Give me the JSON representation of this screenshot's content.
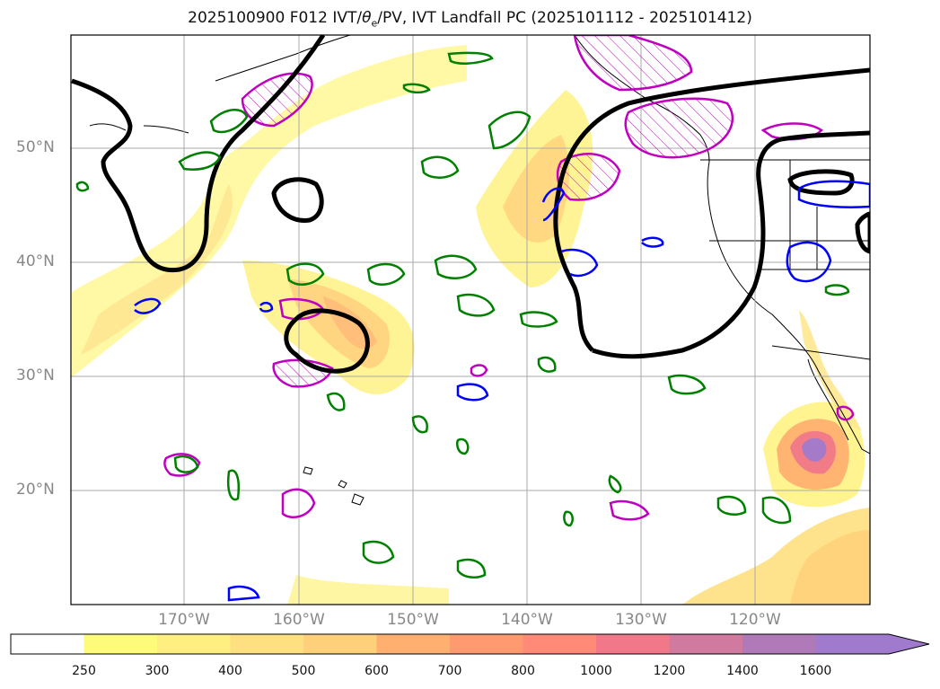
{
  "title_prefix": "2025100900 F012 IVT/",
  "title_symbol": "θ",
  "title_sub": "e",
  "title_suffix": "/PV, IVT Landfall PC (2025101112 - 2025101412)",
  "lat_labels": [
    "50°N",
    "40°N",
    "30°N",
    "20°N"
  ],
  "lon_labels": [
    "170°W",
    "160°W",
    "150°W",
    "140°W",
    "130°W",
    "120°W"
  ],
  "colorbar": {
    "ticks": [
      "250",
      "300",
      "400",
      "500",
      "600",
      "700",
      "800",
      "1000",
      "1200",
      "1400",
      "1600"
    ],
    "colors": [
      "#ffffff",
      "#fffb7a",
      "#ffef80",
      "#ffe080",
      "#ffd07a",
      "#ffb070",
      "#ff9a70",
      "#ff8a78",
      "#f07888",
      "#d07aa0",
      "#b07ab8",
      "#a07acc"
    ]
  },
  "contours": {
    "thick_line_color": "#000000",
    "positive_pv_color": "#008000",
    "negative_pv_color": "#0000ff",
    "theta_e_color": "#c000c0"
  }
}
